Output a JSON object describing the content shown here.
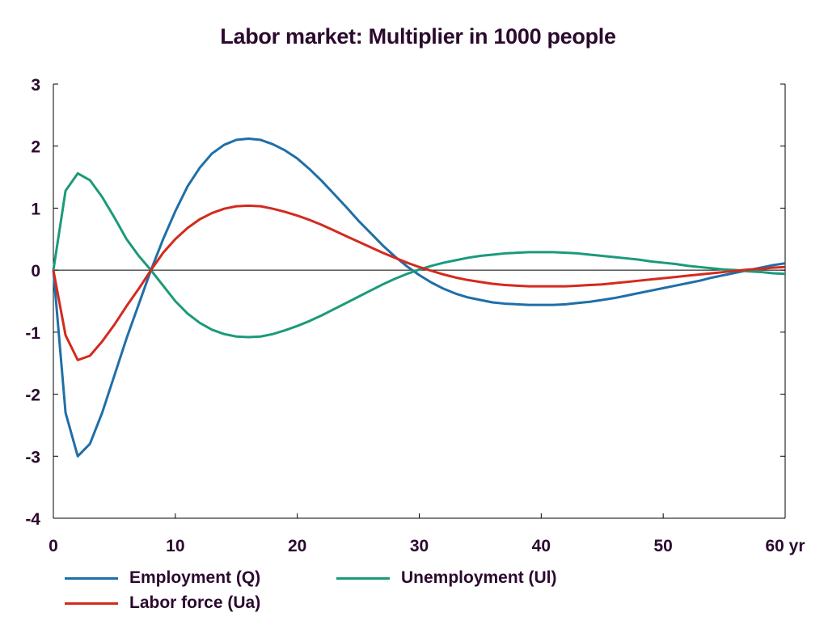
{
  "chart_data": {
    "type": "line",
    "title": "Labor market: Multiplier in 1000 people",
    "xlabel": "",
    "ylabel": "",
    "x_unit_label": "yr",
    "xlim": [
      0,
      60
    ],
    "ylim": [
      -4,
      3
    ],
    "x_ticks": [
      "0",
      "10",
      "20",
      "30",
      "40",
      "50",
      "60 yr"
    ],
    "y_ticks": [
      "3",
      "2",
      "1",
      "0",
      "-1",
      "-2",
      "-3",
      "-4"
    ],
    "grid": false,
    "zero_line": true,
    "legend_position": "bottom",
    "x": [
      0,
      1,
      2,
      3,
      4,
      5,
      6,
      7,
      8,
      9,
      10,
      11,
      12,
      13,
      14,
      15,
      16,
      17,
      18,
      19,
      20,
      21,
      22,
      23,
      24,
      25,
      26,
      27,
      28,
      29,
      30,
      31,
      32,
      33,
      34,
      35,
      36,
      37,
      38,
      39,
      40,
      41,
      42,
      43,
      44,
      45,
      46,
      47,
      48,
      49,
      50,
      51,
      52,
      53,
      54,
      55,
      56,
      57,
      58,
      59,
      60
    ],
    "series": [
      {
        "name": "Employment (Q)",
        "color": "#1f6fa8",
        "values": [
          0,
          -2.3,
          -3.0,
          -2.8,
          -2.3,
          -1.7,
          -1.1,
          -0.55,
          0.0,
          0.5,
          0.95,
          1.35,
          1.65,
          1.88,
          2.02,
          2.1,
          2.12,
          2.1,
          2.03,
          1.93,
          1.8,
          1.63,
          1.44,
          1.23,
          1.02,
          0.8,
          0.6,
          0.4,
          0.22,
          0.06,
          -0.08,
          -0.2,
          -0.3,
          -0.38,
          -0.44,
          -0.48,
          -0.52,
          -0.54,
          -0.55,
          -0.56,
          -0.56,
          -0.56,
          -0.55,
          -0.53,
          -0.51,
          -0.48,
          -0.45,
          -0.41,
          -0.37,
          -0.33,
          -0.29,
          -0.25,
          -0.21,
          -0.17,
          -0.12,
          -0.08,
          -0.04,
          0.0,
          0.04,
          0.08,
          0.11
        ]
      },
      {
        "name": "Unemployment (Ul)",
        "color": "#1b9a7a",
        "values": [
          0,
          1.28,
          1.56,
          1.45,
          1.18,
          0.85,
          0.5,
          0.23,
          0.0,
          -0.25,
          -0.5,
          -0.7,
          -0.85,
          -0.96,
          -1.03,
          -1.07,
          -1.08,
          -1.07,
          -1.03,
          -0.97,
          -0.9,
          -0.82,
          -0.73,
          -0.63,
          -0.53,
          -0.43,
          -0.33,
          -0.23,
          -0.14,
          -0.06,
          0.01,
          0.07,
          0.12,
          0.16,
          0.2,
          0.23,
          0.25,
          0.27,
          0.28,
          0.29,
          0.29,
          0.29,
          0.28,
          0.27,
          0.25,
          0.23,
          0.21,
          0.19,
          0.17,
          0.14,
          0.12,
          0.1,
          0.07,
          0.05,
          0.03,
          0.01,
          0.0,
          -0.02,
          -0.03,
          -0.05,
          -0.06
        ]
      },
      {
        "name": "Labor force (Ua)",
        "color": "#d42a1e",
        "values": [
          0,
          -1.05,
          -1.45,
          -1.38,
          -1.15,
          -0.88,
          -0.58,
          -0.3,
          0.0,
          0.28,
          0.5,
          0.68,
          0.82,
          0.92,
          0.99,
          1.03,
          1.04,
          1.03,
          0.99,
          0.94,
          0.88,
          0.81,
          0.73,
          0.64,
          0.55,
          0.46,
          0.37,
          0.28,
          0.2,
          0.12,
          0.05,
          -0.01,
          -0.07,
          -0.12,
          -0.16,
          -0.19,
          -0.22,
          -0.24,
          -0.25,
          -0.26,
          -0.26,
          -0.26,
          -0.26,
          -0.25,
          -0.24,
          -0.23,
          -0.21,
          -0.19,
          -0.17,
          -0.15,
          -0.13,
          -0.11,
          -0.09,
          -0.07,
          -0.05,
          -0.03,
          -0.01,
          0.01,
          0.02,
          0.04,
          0.05
        ]
      }
    ]
  },
  "legend": [
    {
      "label": "Employment (Q)",
      "color": "#1f6fa8"
    },
    {
      "label": "Unemployment (Ul)",
      "color": "#1b9a7a"
    },
    {
      "label": "Labor force (Ua)",
      "color": "#d42a1e"
    }
  ]
}
